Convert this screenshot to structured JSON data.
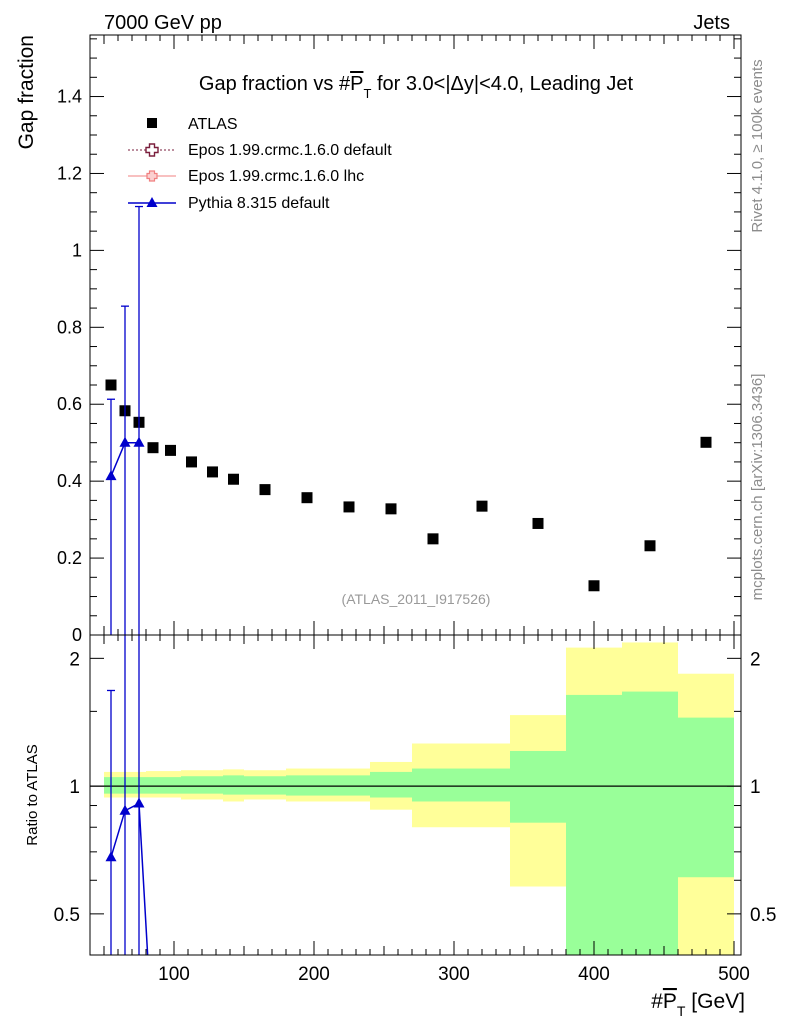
{
  "header": {
    "energy_label": "7000 GeV pp",
    "process_label": "Jets"
  },
  "side_labels": {
    "rivet": "Rivet 4.1.0, ≥ 100k events",
    "mcplots": "mcplots.cern.ch [arXiv:1306.3436]"
  },
  "colors": {
    "atlas": "#000000",
    "epos_default": "#7a1e3c",
    "epos_lhc": "#f08080",
    "pythia": "#0000cc",
    "band_inner": "#99ff99",
    "band_outer": "#ffff99"
  },
  "chart_data": [
    {
      "type": "scatter",
      "title": "Gap fraction vs #P̅T for 3.0<|Δy|<4.0, Leading Jet",
      "title_parts": {
        "prefix": "Gap fraction vs #",
        "var": "P",
        "sub": "T",
        "suffix": " for 3.0<|Δy|<4.0, Leading Jet"
      },
      "ylabel": "Gap fraction",
      "xlabel": "#P̅T [GeV]",
      "xlim": [
        40,
        505
      ],
      "ylim": [
        0,
        1.56
      ],
      "yticks": [
        0.2,
        0.4,
        0.6,
        0.8,
        1,
        1.2,
        1.4
      ],
      "ytick_labels": [
        "0.2",
        "0.4",
        "0.6",
        "0.8",
        "1",
        "1.2",
        "1.4"
      ],
      "y_zero_label": "0",
      "watermark": "(ATLAS_2011_I917526)",
      "legend_position": "top-left",
      "legend": [
        {
          "name": "ATLAS",
          "style": "square"
        },
        {
          "name": "Epos 1.99.crmc.1.6.0 default",
          "style": "open-cross"
        },
        {
          "name": "Epos 1.99.crmc.1.6.0 lhc",
          "style": "cross-line"
        },
        {
          "name": "Pythia 8.315 default",
          "style": "triangle-line"
        }
      ],
      "series": [
        {
          "name": "ATLAS",
          "x": [
            55,
            65,
            75,
            85,
            97.5,
            112.5,
            127.5,
            142.5,
            165,
            195,
            225,
            255,
            285,
            320,
            360,
            400,
            440,
            480
          ],
          "y": [
            0.65,
            0.583,
            0.553,
            0.487,
            0.48,
            0.45,
            0.424,
            0.405,
            0.378,
            0.357,
            0.333,
            0.328,
            0.25,
            0.335,
            0.29,
            0.128,
            0.232,
            0.501
          ]
        },
        {
          "name": "Pythia 8.315 default",
          "x": [
            55,
            65,
            75
          ],
          "y": [
            0.413,
            0.5,
            0.5
          ],
          "yerr_low": [
            0.413,
            0.5,
            0.5
          ],
          "yerr_high": [
            0.2,
            0.355,
            0.614
          ]
        }
      ]
    },
    {
      "type": "area",
      "ylabel": "Ratio to ATLAS",
      "xlabel": "#P̅T [GeV]",
      "xlabel_parts": {
        "prefix": "#",
        "var": "P",
        "sub": "T",
        "suffix": " [GeV]"
      },
      "xlim": [
        40,
        505
      ],
      "ylim": [
        0.4,
        2.27
      ],
      "yscale": "log",
      "xticks": [
        100,
        200,
        300,
        400,
        500
      ],
      "xtick_labels": [
        "100",
        "200",
        "300",
        "400",
        "500"
      ],
      "yticks": [
        0.5,
        1,
        2
      ],
      "ytick_labels": [
        "0.5",
        "1",
        "2"
      ],
      "reference_line": 1,
      "bands": [
        {
          "x_low": 50,
          "x_high": 60,
          "inner": [
            0.96,
            1.05
          ],
          "outer": [
            0.94,
            1.08
          ]
        },
        {
          "x_low": 60,
          "x_high": 70,
          "inner": [
            0.96,
            1.05
          ],
          "outer": [
            0.94,
            1.08
          ]
        },
        {
          "x_low": 70,
          "x_high": 80,
          "inner": [
            0.96,
            1.05
          ],
          "outer": [
            0.94,
            1.08
          ]
        },
        {
          "x_low": 80,
          "x_high": 90,
          "inner": [
            0.96,
            1.05
          ],
          "outer": [
            0.94,
            1.085
          ]
        },
        {
          "x_low": 90,
          "x_high": 105,
          "inner": [
            0.96,
            1.05
          ],
          "outer": [
            0.94,
            1.085
          ]
        },
        {
          "x_low": 105,
          "x_high": 120,
          "inner": [
            0.96,
            1.055
          ],
          "outer": [
            0.93,
            1.09
          ]
        },
        {
          "x_low": 120,
          "x_high": 135,
          "inner": [
            0.96,
            1.055
          ],
          "outer": [
            0.93,
            1.09
          ]
        },
        {
          "x_low": 135,
          "x_high": 150,
          "inner": [
            0.955,
            1.06
          ],
          "outer": [
            0.92,
            1.095
          ]
        },
        {
          "x_low": 150,
          "x_high": 180,
          "inner": [
            0.955,
            1.055
          ],
          "outer": [
            0.93,
            1.09
          ]
        },
        {
          "x_low": 180,
          "x_high": 210,
          "inner": [
            0.95,
            1.06
          ],
          "outer": [
            0.92,
            1.1
          ]
        },
        {
          "x_low": 210,
          "x_high": 240,
          "inner": [
            0.95,
            1.06
          ],
          "outer": [
            0.92,
            1.1
          ]
        },
        {
          "x_low": 240,
          "x_high": 270,
          "inner": [
            0.94,
            1.08
          ],
          "outer": [
            0.88,
            1.14
          ]
        },
        {
          "x_low": 270,
          "x_high": 300,
          "inner": [
            0.92,
            1.1
          ],
          "outer": [
            0.8,
            1.26
          ]
        },
        {
          "x_low": 300,
          "x_high": 340,
          "inner": [
            0.92,
            1.1
          ],
          "outer": [
            0.8,
            1.26
          ]
        },
        {
          "x_low": 340,
          "x_high": 380,
          "inner": [
            0.82,
            1.21
          ],
          "outer": [
            0.58,
            1.47
          ]
        },
        {
          "x_low": 380,
          "x_high": 420,
          "inner": [
            0.4,
            1.64
          ],
          "outer": [
            0.4,
            2.12
          ]
        },
        {
          "x_low": 420,
          "x_high": 460,
          "inner": [
            0.4,
            1.67
          ],
          "outer": [
            0.4,
            2.18
          ]
        },
        {
          "x_low": 460,
          "x_high": 500,
          "inner": [
            0.61,
            1.45
          ],
          "outer": [
            0.4,
            1.84
          ]
        }
      ],
      "series": [
        {
          "name": "Pythia 8.315 default",
          "x": [
            55,
            65,
            75,
            82
          ],
          "y": [
            0.68,
            0.875,
            0.91,
            0.2
          ],
          "yerr_low": [
            0.3,
            0.5,
            0.55,
            0
          ],
          "yerr_high": [
            1.0,
            1.51,
            2.0,
            0
          ]
        }
      ]
    }
  ]
}
